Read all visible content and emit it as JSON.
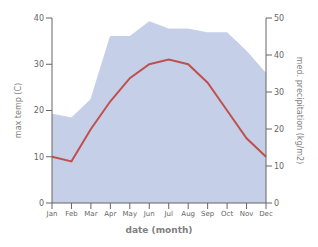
{
  "chart_data": {
    "type": "line",
    "categories": [
      "Jan",
      "Feb",
      "Mar",
      "Apr",
      "May",
      "Jun",
      "Jul",
      "Aug",
      "Sep",
      "Oct",
      "Nov",
      "Dec"
    ],
    "xlabel": "date (month)",
    "ylabel": "max temp (C)",
    "y2label": "med. precipitation (kg/m2)",
    "series": [
      {
        "type": "line",
        "color": "#c0504d",
        "values": [
          10,
          9,
          16,
          22,
          27,
          30,
          31,
          30,
          26,
          20,
          14,
          10
        ]
      },
      {
        "type": "area",
        "color": "#c5d0e8",
        "axis": "y2",
        "values": [
          24,
          23,
          28,
          45,
          45,
          49,
          47,
          47,
          46,
          46,
          41,
          35
        ]
      }
    ],
    "ylim": [
      0,
      40
    ],
    "yticks": [
      0,
      10,
      20,
      30,
      40
    ],
    "y2lim": [
      0,
      50
    ],
    "y2ticks": [
      0,
      10,
      20,
      30,
      40,
      50
    ]
  }
}
